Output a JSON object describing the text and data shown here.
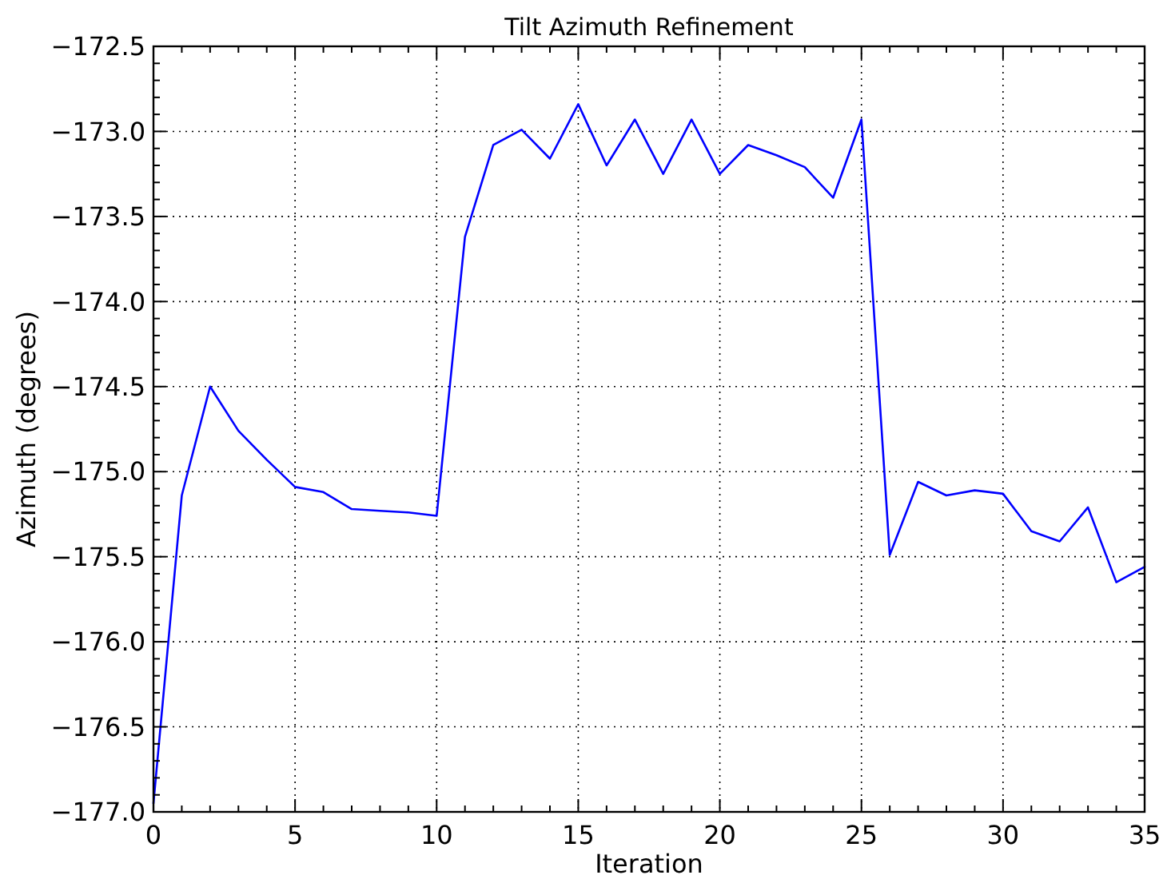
{
  "chart_data": {
    "type": "line",
    "title": "Tilt Azimuth Refinement",
    "xlabel": "Iteration",
    "ylabel": "Azimuth (degrees)",
    "x": [
      0,
      1,
      2,
      3,
      4,
      5,
      6,
      7,
      8,
      9,
      10,
      11,
      12,
      13,
      14,
      15,
      16,
      17,
      18,
      19,
      20,
      21,
      22,
      23,
      24,
      25,
      26,
      27,
      28,
      29,
      30,
      31,
      32,
      33,
      34,
      35
    ],
    "series": [
      {
        "color": "#0000ff",
        "values": [
          -176.95,
          -175.14,
          -174.5,
          -174.76,
          -174.93,
          -175.09,
          -175.12,
          -175.22,
          -175.23,
          -175.24,
          -175.26,
          -173.62,
          -173.08,
          -172.99,
          -173.16,
          -172.84,
          -173.2,
          -172.93,
          -173.25,
          -172.93,
          -173.25,
          -173.08,
          -173.14,
          -173.21,
          -173.39,
          -172.93,
          -175.49,
          -175.06,
          -175.14,
          -175.11,
          -175.13,
          -175.35,
          -175.41,
          -175.21,
          -175.65,
          -175.56
        ]
      }
    ],
    "xlim": [
      0,
      35
    ],
    "ylim": [
      -177,
      -172.5
    ],
    "xticks": [
      0,
      {
        "value": 1,
        "label": null
      },
      {
        "value": 2,
        "label": null
      },
      {
        "value": 3,
        "label": null
      },
      {
        "value": 4,
        "label": null
      },
      5,
      {
        "value": 6,
        "label": null
      },
      {
        "value": 7,
        "label": null
      },
      {
        "value": 8,
        "label": null
      },
      {
        "value": 9,
        "label": null
      },
      10,
      {
        "value": 11,
        "label": null
      },
      {
        "value": 12,
        "label": null
      },
      {
        "value": 13,
        "label": null
      },
      {
        "value": 14,
        "label": null
      },
      15,
      {
        "value": 16,
        "label": null
      },
      {
        "value": 17,
        "label": null
      },
      {
        "value": 18,
        "label": null
      },
      {
        "value": 19,
        "label": null
      },
      20,
      {
        "value": 21,
        "label": null
      },
      {
        "value": 22,
        "label": null
      },
      {
        "value": 23,
        "label": null
      },
      {
        "value": 24,
        "label": null
      },
      25,
      {
        "value": 26,
        "label": null
      },
      {
        "value": 27,
        "label": null
      },
      {
        "value": 28,
        "label": null
      },
      {
        "value": 29,
        "label": null
      },
      30,
      {
        "value": 31,
        "label": null
      },
      {
        "value": 32,
        "label": null
      },
      {
        "value": 33,
        "label": null
      },
      {
        "value": 34,
        "label": null
      },
      35
    ],
    "yticks": [
      {
        "value": -177,
        "label": "−177.0"
      },
      {
        "value": -176.9,
        "label": null
      },
      {
        "value": -176.8,
        "label": null
      },
      {
        "value": -176.7,
        "label": null
      },
      {
        "value": -176.6,
        "label": null
      },
      {
        "value": -176.5,
        "label": "−176.5"
      },
      {
        "value": -176.4,
        "label": null
      },
      {
        "value": -176.3,
        "label": null
      },
      {
        "value": -176.2,
        "label": null
      },
      {
        "value": -176.1,
        "label": null
      },
      {
        "value": -176,
        "label": "−176.0"
      },
      {
        "value": -175.9,
        "label": null
      },
      {
        "value": -175.8,
        "label": null
      },
      {
        "value": -175.7,
        "label": null
      },
      {
        "value": -175.6,
        "label": null
      },
      {
        "value": -175.5,
        "label": "−175.5"
      },
      {
        "value": -175.4,
        "label": null
      },
      {
        "value": -175.3,
        "label": null
      },
      {
        "value": -175.2,
        "label": null
      },
      {
        "value": -175.1,
        "label": null
      },
      {
        "value": -175,
        "label": "−175.0"
      },
      {
        "value": -174.9,
        "label": null
      },
      {
        "value": -174.8,
        "label": null
      },
      {
        "value": -174.7,
        "label": null
      },
      {
        "value": -174.6,
        "label": null
      },
      {
        "value": -174.5,
        "label": "−174.5"
      },
      {
        "value": -174.4,
        "label": null
      },
      {
        "value": -174.3,
        "label": null
      },
      {
        "value": -174.2,
        "label": null
      },
      {
        "value": -174.1,
        "label": null
      },
      {
        "value": -174,
        "label": "−174.0"
      },
      {
        "value": -173.9,
        "label": null
      },
      {
        "value": -173.8,
        "label": null
      },
      {
        "value": -173.7,
        "label": null
      },
      {
        "value": -173.6,
        "label": null
      },
      {
        "value": -173.5,
        "label": "−173.5"
      },
      {
        "value": -173.4,
        "label": null
      },
      {
        "value": -173.3,
        "label": null
      },
      {
        "value": -173.2,
        "label": null
      },
      {
        "value": -173.1,
        "label": null
      },
      {
        "value": -173,
        "label": "−173.0"
      },
      {
        "value": -172.9,
        "label": null
      },
      {
        "value": -172.8,
        "label": null
      },
      {
        "value": -172.7,
        "label": null
      },
      {
        "value": -172.6,
        "label": null
      },
      {
        "value": -172.5,
        "label": "−172.5"
      }
    ],
    "grid": true,
    "line_style": "solid"
  }
}
